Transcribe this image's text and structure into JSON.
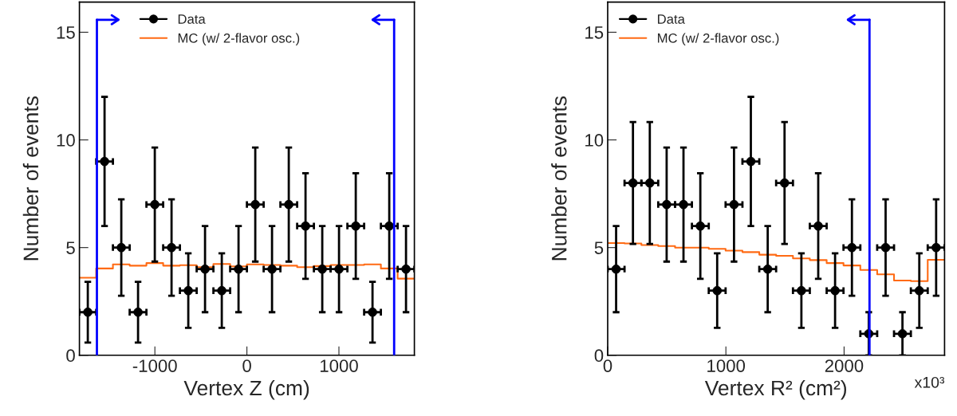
{
  "chart_data": [
    {
      "type": "scatter",
      "xlabel": "Vertex Z (cm)",
      "ylabel": "Number of events",
      "xlim": [
        -1820,
        1820
      ],
      "xticks": [
        -1000,
        0,
        1000
      ],
      "ylim": [
        0,
        16.4
      ],
      "yticks": [
        0,
        5,
        10,
        15
      ],
      "legend": "top",
      "grid": false,
      "series": [
        {
          "name": "Data",
          "type": "scatter",
          "color": "#000000",
          "marker": "circle",
          "x": [
            -1729,
            -1547,
            -1365,
            -1183,
            -1001,
            -819,
            -637,
            -455,
            -273,
            -91,
            91,
            273,
            455,
            637,
            819,
            1001,
            1183,
            1365,
            1547,
            1729
          ],
          "values": [
            2,
            9,
            5,
            2,
            7,
            5,
            3,
            4,
            3,
            4,
            7,
            4,
            7,
            6,
            4,
            4,
            6,
            2,
            6,
            4
          ],
          "errors": [
            1.41,
            3,
            2.24,
            1.41,
            2.65,
            2.24,
            1.73,
            2,
            1.73,
            2,
            2.65,
            2,
            2.65,
            2.45,
            2,
            2,
            2.45,
            1.41,
            2.45,
            2
          ],
          "xerrors": [
            91,
            91,
            91,
            91,
            91,
            91,
            91,
            91,
            91,
            91,
            91,
            91,
            91,
            91,
            91,
            91,
            91,
            91,
            91,
            91
          ]
        },
        {
          "name": "MC (w/ 2-flavor osc.)",
          "type": "step",
          "color": "#ff6a13",
          "x": [
            -1820,
            -1638,
            -1456,
            -1274,
            -1092,
            -910,
            -728,
            -546,
            -364,
            -182,
            0,
            182,
            364,
            546,
            728,
            910,
            1092,
            1274,
            1456,
            1638,
            1820
          ],
          "values": [
            3.6,
            4.03,
            4.22,
            4.16,
            4.28,
            4.16,
            4.18,
            4.09,
            4.24,
            4.13,
            4.22,
            4.19,
            4.16,
            4.09,
            4.14,
            4.19,
            4.19,
            4.22,
            4.03,
            3.56,
            3.56
          ]
        }
      ],
      "ref_lines": [
        {
          "axis": "x",
          "value": -1630,
          "color": "#0000ff"
        },
        {
          "axis": "x",
          "value": 1600,
          "color": "#0000ff"
        }
      ]
    },
    {
      "type": "scatter",
      "xlabel": "Vertex R² (cm²)",
      "ylabel": "Number of events",
      "xlim": [
        0,
        2850
      ],
      "xticks": [
        0,
        1000,
        2000
      ],
      "ylim": [
        0,
        16.4
      ],
      "yticks": [
        0,
        5,
        10,
        15
      ],
      "legend": "top left",
      "grid": false,
      "annotations": [
        "x10³"
      ],
      "series": [
        {
          "name": "Data",
          "type": "scatter",
          "color": "#000000",
          "marker": "circle",
          "x": [
            71.25,
            213.75,
            356.25,
            498.75,
            641.25,
            783.75,
            926.25,
            1068.75,
            1211.25,
            1353.75,
            1496.25,
            1638.75,
            1781.25,
            1923.75,
            2066.25,
            2208.75,
            2351.25,
            2493.75,
            2636.25,
            2778.75
          ],
          "values": [
            4,
            8,
            8,
            7,
            7,
            6,
            3,
            7,
            9,
            4,
            8,
            3,
            6,
            3,
            5,
            1,
            5,
            1,
            3,
            5
          ],
          "errors": [
            2,
            2.83,
            2.83,
            2.65,
            2.65,
            2.45,
            1.73,
            2.65,
            3,
            2,
            2.83,
            1.73,
            2.45,
            1.73,
            2.24,
            1,
            2.24,
            1,
            1.73,
            2.24
          ],
          "xerrors": [
            71.25,
            71.25,
            71.25,
            71.25,
            71.25,
            71.25,
            71.25,
            71.25,
            71.25,
            71.25,
            71.25,
            71.25,
            71.25,
            71.25,
            71.25,
            71.25,
            71.25,
            71.25,
            71.25,
            71.25
          ]
        },
        {
          "name": "MC (w/ 2-flavor osc.)",
          "type": "step",
          "color": "#ff6a13",
          "x": [
            0,
            142.5,
            285,
            427.5,
            570,
            712.5,
            855,
            997.5,
            1140,
            1282.5,
            1425,
            1567.5,
            1710,
            1852.5,
            1995,
            2137.5,
            2280,
            2422.5,
            2565,
            2707.5,
            2850
          ],
          "values": [
            5.21,
            5.19,
            5.12,
            5.07,
            5.0,
            5.0,
            4.94,
            4.86,
            4.79,
            4.67,
            4.62,
            4.5,
            4.42,
            4.28,
            4.17,
            3.96,
            3.76,
            3.47,
            3.44,
            4.43,
            4.43
          ]
        }
      ],
      "ref_lines": [
        {
          "axis": "x",
          "value": 2215,
          "color": "#0000ff"
        }
      ]
    }
  ]
}
